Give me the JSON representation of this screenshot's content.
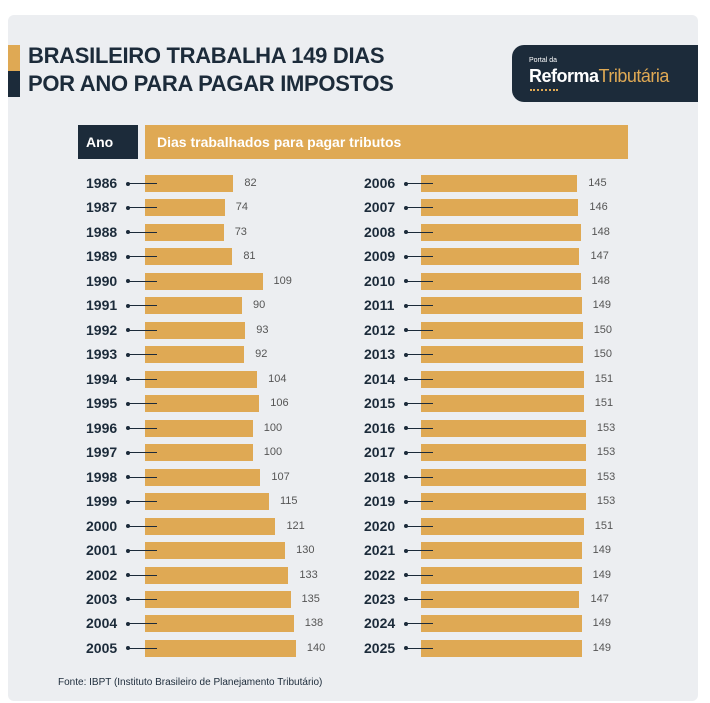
{
  "title": {
    "line1": "BRASILEIRO TRABALHA 149 DIAS",
    "line2": "POR ANO PARA PAGAR IMPOSTOS"
  },
  "logo": {
    "small": "Portal da",
    "bold": "Reforma",
    "light": "Tributária"
  },
  "colors": {
    "gold": "#dfa954",
    "navy": "#1c2b3a",
    "background": "#eceef1"
  },
  "chart_data": {
    "type": "bar",
    "orientation": "horizontal",
    "title": "BRASILEIRO TRABALHA 149 DIAS POR ANO PARA PAGAR IMPOSTOS",
    "xlabel": "Dias trabalhados para pagar tributos",
    "ylabel": "Ano",
    "categories": [
      "1986",
      "1987",
      "1988",
      "1989",
      "1990",
      "1991",
      "1992",
      "1993",
      "1994",
      "1995",
      "1996",
      "1997",
      "1998",
      "1999",
      "2000",
      "2001",
      "2002",
      "2003",
      "2004",
      "2005",
      "2006",
      "2007",
      "2008",
      "2009",
      "2010",
      "2011",
      "2012",
      "2013",
      "2014",
      "2015",
      "2016",
      "2017",
      "2018",
      "2019",
      "2020",
      "2021",
      "2022",
      "2023",
      "2024",
      "2025"
    ],
    "values": [
      82,
      74,
      73,
      81,
      109,
      90,
      93,
      92,
      104,
      106,
      100,
      100,
      107,
      115,
      121,
      130,
      133,
      135,
      138,
      140,
      145,
      146,
      148,
      147,
      148,
      149,
      150,
      150,
      151,
      151,
      153,
      153,
      153,
      153,
      151,
      149,
      149,
      147,
      149,
      149
    ],
    "source": "Fonte: IBPT (Instituto Brasileiro de Planejamento Tributário)"
  }
}
